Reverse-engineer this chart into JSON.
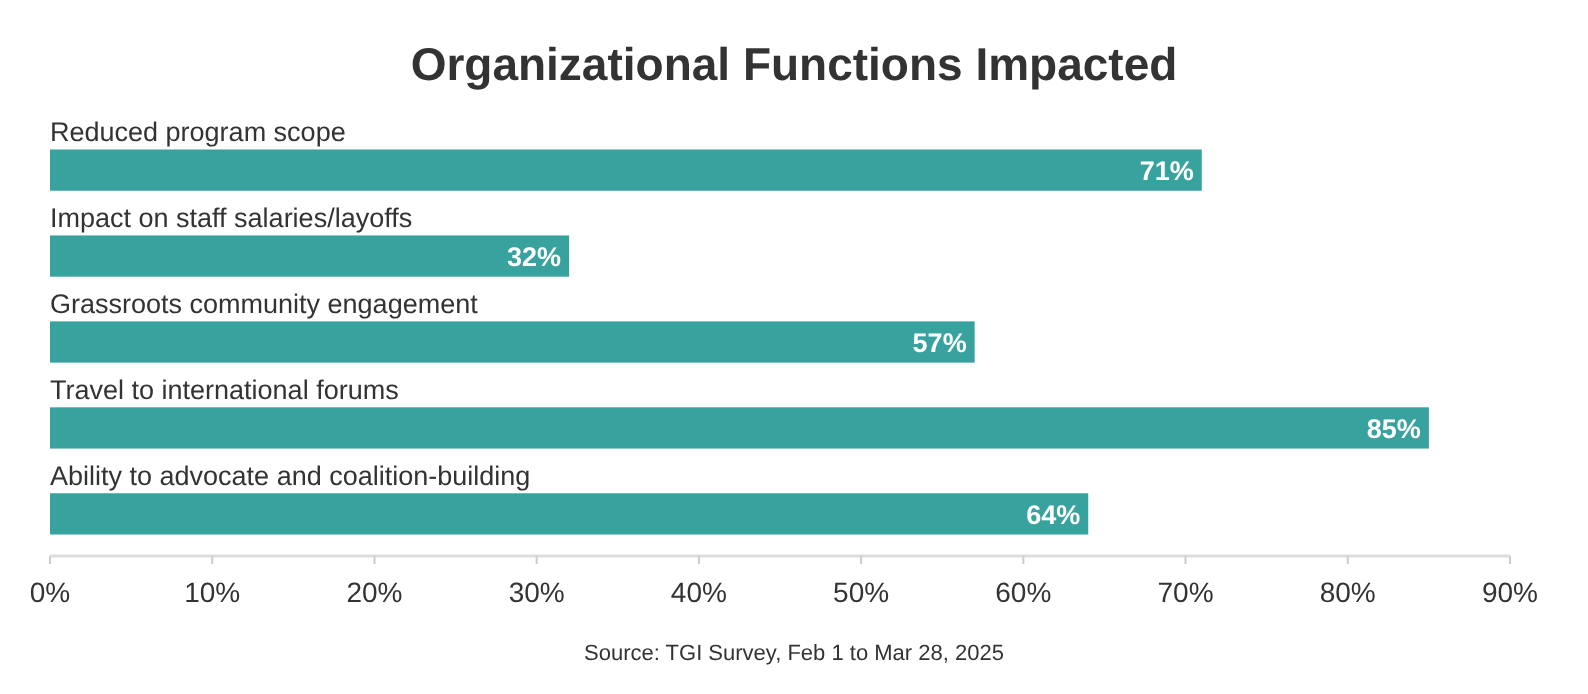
{
  "chart_data": {
    "type": "bar",
    "orientation": "horizontal",
    "title": "Organizational Functions Impacted",
    "categories": [
      "Reduced program scope",
      "Impact on staff salaries/layoffs",
      "Grassroots community engagement",
      "Travel to international forums",
      "Ability to advocate and coalition-building"
    ],
    "values": [
      71,
      32,
      57,
      85,
      64
    ],
    "value_labels": [
      "71%",
      "32%",
      "57%",
      "85%",
      "64%"
    ],
    "color": "#38a39e",
    "xlim": [
      0,
      90
    ],
    "xticks": [
      {
        "value": 0,
        "label": "0%"
      },
      {
        "value": 10,
        "label": "10%"
      },
      {
        "value": 20,
        "label": "20%"
      },
      {
        "value": 30,
        "label": "30%"
      },
      {
        "value": 40,
        "label": "40%"
      },
      {
        "value": 50,
        "label": "50%"
      },
      {
        "value": 60,
        "label": "60%"
      },
      {
        "value": 70,
        "label": "70%"
      },
      {
        "value": 80,
        "label": "80%"
      },
      {
        "value": 90,
        "label": "90%"
      }
    ],
    "grid": false,
    "annotations": [
      "Source: TGI Survey, Feb 1 to Mar 28, 2025"
    ]
  }
}
